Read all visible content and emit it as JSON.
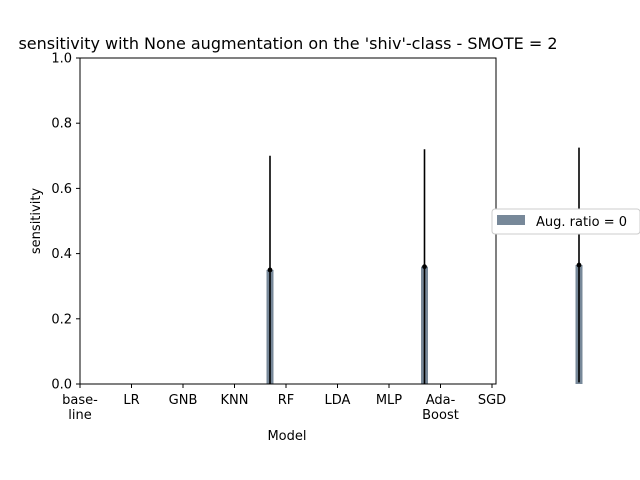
{
  "chart_data": {
    "type": "bar",
    "title": "sensitivity with None augmentation on the 'shiv'-class - SMOTE = 2",
    "xlabel": "Model",
    "ylabel": "sensitivity",
    "ylim": [
      0,
      1.0
    ],
    "yticks": [
      "0.0",
      "0.2",
      "0.4",
      "0.6",
      "0.8",
      "1.0"
    ],
    "categories": [
      [
        "base-",
        "line"
      ],
      [
        "LR"
      ],
      [
        "GNB"
      ],
      [
        "KNN"
      ],
      [
        "RF"
      ],
      [
        "LDA"
      ],
      [
        "MLP"
      ],
      [
        "Ada-",
        "Boost"
      ],
      [
        "SGD"
      ]
    ],
    "series": [
      {
        "name": "Aug. ratio = 0",
        "color": "#778899",
        "values": [
          0,
          0,
          0.35,
          0,
          0,
          0.36,
          0,
          0,
          0.365
        ],
        "errors": [
          0,
          0,
          0.35,
          0,
          0,
          0.36,
          0,
          0,
          0.36
        ]
      }
    ],
    "legend": "outside-right",
    "grid": false
  }
}
